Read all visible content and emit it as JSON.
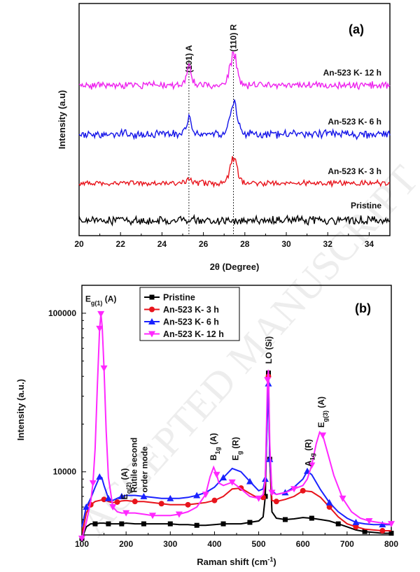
{
  "chart_data": [
    {
      "type": "line",
      "panel_label": "(a)",
      "xlabel": "2θ (Degree)",
      "ylabel": "Intensity (a.u)",
      "xlim": [
        20,
        35
      ],
      "x_ticks": [
        20,
        22,
        24,
        26,
        28,
        30,
        32,
        34
      ],
      "y_ticks_shown": false,
      "reference_lines": [
        {
          "x": 25.3,
          "label": "(101) A"
        },
        {
          "x": 27.45,
          "label": "(110) R"
        }
      ],
      "series": [
        {
          "name": "Pristine",
          "color": "#000000",
          "offset": 0,
          "noise": 1.0,
          "peaks": [
            {
              "x": 25.3,
              "h": 0
            },
            {
              "x": 27.45,
              "h": 0
            }
          ]
        },
        {
          "name": "An-523 K- 3 h",
          "color": "#e8141c",
          "offset": 1,
          "noise": 0.7,
          "peaks": [
            {
              "x": 25.3,
              "h": 0.5
            },
            {
              "x": 27.45,
              "h": 3.2
            }
          ]
        },
        {
          "name": "An-523 K- 6 h",
          "color": "#1414e8",
          "offset": 2,
          "noise": 1.0,
          "peaks": [
            {
              "x": 25.3,
              "h": 2.2
            },
            {
              "x": 27.45,
              "h": 4.2
            }
          ]
        },
        {
          "name": "An-523 K- 12 h",
          "color": "#ee22ee",
          "offset": 3,
          "noise": 0.9,
          "peaks": [
            {
              "x": 25.3,
              "h": 2.4
            },
            {
              "x": 27.45,
              "h": 4.0
            }
          ]
        }
      ]
    },
    {
      "type": "line",
      "panel_label": "(b)",
      "xlabel": "Raman shift (cm",
      "xlabel_sup": "-1",
      "xlabel_end": ")",
      "ylabel": "Intensity (a.u.)",
      "xlim": [
        100,
        800
      ],
      "ylim": [
        4000,
        150000
      ],
      "y_scale": "log",
      "x_ticks": [
        100,
        200,
        300,
        400,
        500,
        600,
        700,
        800
      ],
      "y_ticks": [
        {
          "value": 10000,
          "label": "10000"
        },
        {
          "value": 100000,
          "label": "100000"
        }
      ],
      "legend_position": "top-left",
      "annotations": [
        {
          "base": "E",
          "sub": "g(1)",
          "tail": " (A)",
          "x": 143,
          "y": 118000,
          "rotate": false
        },
        {
          "base": "E",
          "sub": "g(2)",
          "tail": " (A)",
          "x": 197,
          "y": 6700,
          "rotate": true
        },
        {
          "base": "Rutile second",
          "sub": "",
          "tail": "",
          "x": 218,
          "y": 7400,
          "rotate": true
        },
        {
          "base": "order mode",
          "sub": "",
          "tail": "",
          "x": 242,
          "y": 7400,
          "rotate": true
        },
        {
          "base": "B",
          "sub": "1g",
          "tail": " (A)",
          "x": 398,
          "y": 11800,
          "rotate": true
        },
        {
          "base": "E",
          "sub": "g",
          "tail": " (R)",
          "x": 448,
          "y": 11800,
          "rotate": true
        },
        {
          "base": "LO (Si)",
          "sub": "",
          "tail": "",
          "x": 523,
          "y": 48000,
          "rotate": true
        },
        {
          "base": "A",
          "sub": "1g",
          "tail": " (R)",
          "x": 612,
          "y": 10800,
          "rotate": true
        },
        {
          "base": "E",
          "sub": "g(3)",
          "tail": " (A)",
          "x": 642,
          "y": 19000,
          "rotate": true
        }
      ],
      "series": [
        {
          "name": "Pristine",
          "color": "#000000",
          "marker": "square",
          "x": [
            100,
            110,
            120,
            130,
            140,
            150,
            160,
            170,
            180,
            190,
            200,
            220,
            240,
            260,
            280,
            300,
            320,
            340,
            360,
            380,
            400,
            420,
            440,
            460,
            480,
            500,
            510,
            515,
            520,
            522,
            525,
            530,
            540,
            560,
            580,
            600,
            620,
            640,
            660,
            680,
            700,
            720,
            740,
            760,
            780,
            800
          ],
          "y": [
            3800,
            4500,
            4700,
            4700,
            4750,
            4750,
            4700,
            4700,
            4700,
            4700,
            4750,
            4700,
            4700,
            4700,
            4700,
            4700,
            4650,
            4650,
            4600,
            4600,
            4650,
            4700,
            4700,
            4700,
            4800,
            4900,
            5200,
            7000,
            30000,
            42000,
            12000,
            5600,
            5100,
            5000,
            5050,
            5150,
            5100,
            5000,
            4900,
            4700,
            4500,
            4300,
            4200,
            4150,
            4100,
            4100
          ]
        },
        {
          "name": "An-523 K- 3 h",
          "color": "#e8141c",
          "marker": "circle",
          "x": [
            100,
            110,
            120,
            130,
            140,
            150,
            160,
            170,
            180,
            190,
            200,
            220,
            240,
            260,
            280,
            300,
            320,
            340,
            360,
            380,
            400,
            420,
            440,
            460,
            480,
            500,
            510,
            515,
            520,
            522,
            525,
            530,
            540,
            560,
            580,
            600,
            620,
            640,
            660,
            680,
            700,
            720,
            740,
            760,
            780,
            800
          ],
          "y": [
            4000,
            5500,
            6200,
            6500,
            6600,
            6700,
            6500,
            6400,
            6450,
            6550,
            6600,
            6500,
            6500,
            6400,
            6300,
            6200,
            6200,
            6200,
            6300,
            6400,
            6600,
            7000,
            7800,
            7900,
            7300,
            6800,
            6900,
            8500,
            32000,
            40000,
            12000,
            6600,
            6500,
            6700,
            7000,
            7600,
            7500,
            6900,
            6000,
            5200,
            4700,
            4500,
            4350,
            4300,
            4250,
            4250
          ]
        },
        {
          "name": "An-523 K- 6 h",
          "color": "#1a22ff",
          "marker": "triangle-up",
          "x": [
            100,
            110,
            120,
            130,
            140,
            145,
            150,
            160,
            170,
            180,
            190,
            200,
            220,
            240,
            260,
            280,
            300,
            320,
            340,
            360,
            380,
            400,
            420,
            440,
            460,
            480,
            500,
            510,
            515,
            520,
            522,
            525,
            530,
            540,
            560,
            580,
            600,
            610,
            620,
            640,
            660,
            680,
            700,
            720,
            740,
            760,
            780,
            800
          ],
          "y": [
            4500,
            6000,
            6800,
            8000,
            9300,
            9200,
            8200,
            6800,
            6600,
            6800,
            7000,
            7100,
            7100,
            7000,
            6900,
            6800,
            6800,
            6800,
            6900,
            7100,
            7400,
            8000,
            9200,
            10500,
            10000,
            8700,
            7600,
            7800,
            9000,
            24000,
            36000,
            12000,
            7600,
            7200,
            7400,
            8000,
            9000,
            10100,
            9600,
            7700,
            6400,
            5600,
            5100,
            4800,
            4700,
            4650,
            4650,
            4650
          ]
        },
        {
          "name": "An-523 K- 12 h",
          "color": "#ff28ff",
          "marker": "triangle-down",
          "x": [
            100,
            110,
            120,
            125,
            130,
            135,
            140,
            143,
            146,
            150,
            155,
            160,
            170,
            180,
            190,
            200,
            220,
            240,
            260,
            280,
            300,
            320,
            340,
            360,
            380,
            390,
            398,
            405,
            410,
            420,
            440,
            460,
            480,
            500,
            510,
            515,
            520,
            522,
            525,
            530,
            540,
            560,
            580,
            600,
            610,
            620,
            630,
            638,
            645,
            655,
            670,
            690,
            710,
            730,
            750,
            770,
            790,
            800
          ],
          "y": [
            3800,
            4800,
            6500,
            8500,
            14000,
            35000,
            80000,
            99000,
            82000,
            45000,
            18000,
            9200,
            6000,
            5600,
            5500,
            5500,
            5500,
            5400,
            5300,
            5300,
            5300,
            5400,
            5600,
            6000,
            7200,
            9300,
            10700,
            9600,
            8500,
            8200,
            8600,
            7800,
            7000,
            6800,
            7200,
            9000,
            38000,
            44000,
            15000,
            7400,
            7200,
            7400,
            7800,
            8200,
            9000,
            11000,
            15000,
            17800,
            17000,
            13500,
            9500,
            6800,
            5600,
            5100,
            4900,
            4800,
            4700,
            4700
          ]
        }
      ]
    }
  ],
  "watermark": "ACCEPTED MANUSCRIPT"
}
